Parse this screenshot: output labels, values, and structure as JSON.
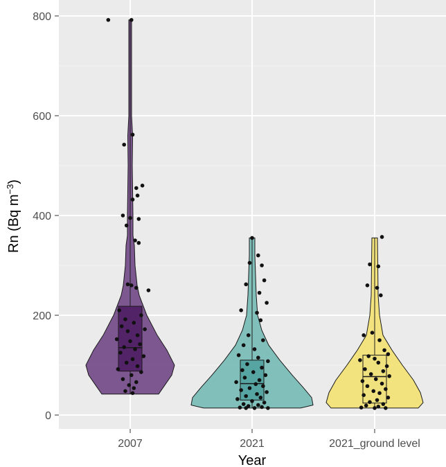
{
  "chart_data": {
    "type": "violin",
    "xlabel": "Year",
    "ylabel_parts": {
      "main": "Rn (Bq m",
      "sup": "−3",
      "close": ")"
    },
    "ylim": [
      -28,
      800
    ],
    "yticks": [
      0,
      200,
      400,
      600,
      800
    ],
    "grid": true,
    "background": "#ebebeb",
    "categories": [
      "2007",
      "2021",
      "2021_ground level"
    ],
    "series": [
      {
        "fill": "#6a3d80",
        "box_fill": "#4a1a60",
        "box": {
          "q1": 88,
          "median": 135,
          "q3": 218,
          "whisker_low": 42,
          "whisker_high": 790
        },
        "density": [
          [
            42,
            0.41
          ],
          [
            60,
            0.5
          ],
          [
            80,
            0.6
          ],
          [
            100,
            0.64
          ],
          [
            130,
            0.53
          ],
          [
            160,
            0.39
          ],
          [
            200,
            0.24
          ],
          [
            240,
            0.13
          ],
          [
            260,
            0.1
          ],
          [
            300,
            0.07
          ],
          [
            340,
            0.06
          ],
          [
            360,
            0.04
          ],
          [
            400,
            0.04
          ],
          [
            500,
            0.03
          ],
          [
            560,
            0.035
          ],
          [
            600,
            0.02
          ],
          [
            700,
            0.02
          ],
          [
            792,
            0.02
          ]
        ],
        "points": [
          [
            -0.18,
            792
          ],
          [
            0.01,
            792
          ],
          [
            0.02,
            562
          ],
          [
            -0.05,
            542
          ],
          [
            0.1,
            460
          ],
          [
            0.05,
            455
          ],
          [
            0.06,
            440
          ],
          [
            0.02,
            432
          ],
          [
            -0.06,
            400
          ],
          [
            0.0,
            395
          ],
          [
            0.07,
            393
          ],
          [
            -0.03,
            380
          ],
          [
            0.04,
            350
          ],
          [
            0.07,
            345
          ],
          [
            -0.02,
            262
          ],
          [
            0.01,
            260
          ],
          [
            0.05,
            255
          ],
          [
            0.15,
            250
          ],
          [
            -0.09,
            210
          ],
          [
            0.09,
            200
          ],
          [
            -0.04,
            192
          ],
          [
            0.03,
            185
          ],
          [
            -0.07,
            178
          ],
          [
            0.12,
            172
          ],
          [
            -0.02,
            168
          ],
          [
            0.06,
            160
          ],
          [
            -0.11,
            152
          ],
          [
            0.0,
            148
          ],
          [
            0.08,
            142
          ],
          [
            -0.05,
            136
          ],
          [
            0.04,
            132
          ],
          [
            -0.08,
            125
          ],
          [
            0.11,
            118
          ],
          [
            0.02,
            112
          ],
          [
            -0.03,
            105
          ],
          [
            0.06,
            98
          ],
          [
            -0.1,
            92
          ],
          [
            0.09,
            86
          ],
          [
            0.01,
            80
          ],
          [
            -0.06,
            72
          ],
          [
            0.05,
            66
          ],
          [
            -0.01,
            60
          ],
          [
            0.03,
            54
          ],
          [
            -0.04,
            48
          ],
          [
            0.02,
            44
          ]
        ]
      },
      {
        "fill": "#6fb7b3",
        "box_fill": "#4fa09d",
        "box": {
          "q1": 30,
          "median": 63,
          "q3": 110,
          "whisker_low": 14,
          "whisker_high": 355
        },
        "density": [
          [
            14,
            0.7
          ],
          [
            20,
            0.88
          ],
          [
            35,
            0.86
          ],
          [
            55,
            0.74
          ],
          [
            80,
            0.58
          ],
          [
            110,
            0.4
          ],
          [
            140,
            0.24
          ],
          [
            170,
            0.14
          ],
          [
            200,
            0.08
          ],
          [
            240,
            0.06
          ],
          [
            280,
            0.05
          ],
          [
            320,
            0.04
          ],
          [
            355,
            0.04
          ]
        ],
        "points": [
          [
            0.0,
            355
          ],
          [
            0.05,
            320
          ],
          [
            -0.02,
            305
          ],
          [
            0.08,
            300
          ],
          [
            0.1,
            270
          ],
          [
            -0.05,
            262
          ],
          [
            0.06,
            245
          ],
          [
            0.12,
            225
          ],
          [
            -0.09,
            210
          ],
          [
            0.04,
            205
          ],
          [
            0.07,
            190
          ],
          [
            -0.03,
            160
          ],
          [
            0.09,
            150
          ],
          [
            -0.07,
            140
          ],
          [
            0.02,
            132
          ],
          [
            -0.11,
            120
          ],
          [
            0.05,
            115
          ],
          [
            0.13,
            108
          ],
          [
            -0.04,
            102
          ],
          [
            0.08,
            95
          ],
          [
            -0.08,
            90
          ],
          [
            0.01,
            86
          ],
          [
            0.11,
            80
          ],
          [
            -0.06,
            75
          ],
          [
            0.06,
            70
          ],
          [
            -0.13,
            66
          ],
          [
            0.03,
            62
          ],
          [
            0.09,
            58
          ],
          [
            -0.02,
            54
          ],
          [
            -0.09,
            50
          ],
          [
            0.12,
            46
          ],
          [
            0.04,
            42
          ],
          [
            -0.05,
            38
          ],
          [
            0.07,
            35
          ],
          [
            -0.12,
            32
          ],
          [
            0.0,
            28
          ],
          [
            0.1,
            25
          ],
          [
            -0.07,
            22
          ],
          [
            0.05,
            20
          ],
          [
            -0.03,
            18
          ],
          [
            0.08,
            16
          ],
          [
            -0.1,
            15
          ],
          [
            0.02,
            14
          ],
          [
            0.13,
            14
          ],
          [
            -0.05,
            14
          ]
        ]
      },
      {
        "fill": "#f5e26c",
        "box_fill": "#ede07c",
        "box": {
          "q1": 24,
          "median": 77,
          "q3": 120,
          "whisker_low": 14,
          "whisker_high": 355
        },
        "density": [
          [
            14,
            0.63
          ],
          [
            25,
            0.7
          ],
          [
            45,
            0.66
          ],
          [
            70,
            0.56
          ],
          [
            100,
            0.4
          ],
          [
            130,
            0.25
          ],
          [
            160,
            0.12
          ],
          [
            200,
            0.07
          ],
          [
            240,
            0.05
          ],
          [
            300,
            0.045
          ],
          [
            355,
            0.04
          ]
        ],
        "points": [
          [
            0.06,
            357
          ],
          [
            -0.04,
            302
          ],
          [
            0.03,
            298
          ],
          [
            -0.06,
            260
          ],
          [
            0.02,
            255
          ],
          [
            0.05,
            240
          ],
          [
            -0.02,
            165
          ],
          [
            -0.09,
            160
          ],
          [
            0.04,
            150
          ],
          [
            0.08,
            130
          ],
          [
            0.11,
            122
          ],
          [
            -0.05,
            118
          ],
          [
            0.0,
            113
          ],
          [
            -0.12,
            110
          ],
          [
            0.03,
            105
          ],
          [
            0.1,
            98
          ],
          [
            -0.08,
            92
          ],
          [
            0.07,
            88
          ],
          [
            -0.03,
            82
          ],
          [
            0.12,
            78
          ],
          [
            0.01,
            72
          ],
          [
            -0.1,
            68
          ],
          [
            0.06,
            63
          ],
          [
            -0.06,
            58
          ],
          [
            0.09,
            52
          ],
          [
            -0.01,
            48
          ],
          [
            0.04,
            44
          ],
          [
            -0.09,
            40
          ],
          [
            0.11,
            35
          ],
          [
            0.02,
            30
          ],
          [
            -0.04,
            26
          ],
          [
            0.07,
            22
          ],
          [
            -0.07,
            19
          ],
          [
            0.03,
            17
          ],
          [
            -0.11,
            15
          ],
          [
            0.09,
            14
          ],
          [
            0.0,
            14
          ]
        ]
      }
    ]
  }
}
